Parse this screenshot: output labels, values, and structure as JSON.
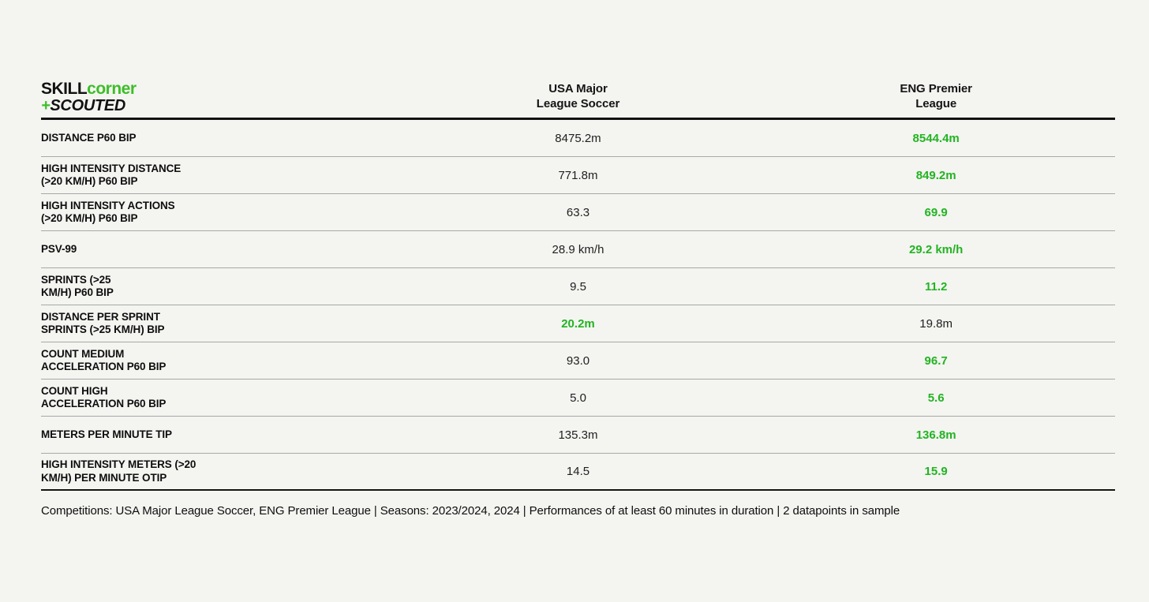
{
  "logo": {
    "line1_black": "SKILL",
    "line1_green": "corner",
    "line2_green": "+",
    "line2_black": "SCOUTED"
  },
  "header": {
    "columns": [
      {
        "key": "mls",
        "label": "USA Major\nLeague Soccer"
      },
      {
        "key": "epl",
        "label": "ENG Premier\nLeague"
      }
    ]
  },
  "colors": {
    "highlight_green": "#22b422",
    "logo_green": "#3dbe28",
    "background": "#f4f4f1",
    "separator_gray": "#a6aaa6"
  },
  "rows": [
    {
      "metric": "DISTANCE P60 BIP",
      "mls": "8475.2m",
      "epl": "8544.4m",
      "best": "epl"
    },
    {
      "metric": "HIGH INTENSITY DISTANCE\n(>20 KM/H) P60 BIP",
      "mls": "771.8m",
      "epl": "849.2m",
      "best": "epl"
    },
    {
      "metric": "HIGH INTENSITY ACTIONS\n(>20 KM/H) P60 BIP",
      "mls": "63.3",
      "epl": "69.9",
      "best": "epl"
    },
    {
      "metric": "PSV-99",
      "mls": "28.9 km/h",
      "epl": "29.2 km/h",
      "best": "epl"
    },
    {
      "metric": "SPRINTS (>25\nKM/H) P60 BIP",
      "mls": "9.5",
      "epl": "11.2",
      "best": "epl"
    },
    {
      "metric": "DISTANCE PER SPRINT\nSPRINTS (>25 KM/H) BIP",
      "mls": "20.2m",
      "epl": "19.8m",
      "best": "mls"
    },
    {
      "metric": "COUNT MEDIUM\nACCELERATION P60 BIP",
      "mls": "93.0",
      "epl": "96.7",
      "best": "epl"
    },
    {
      "metric": "COUNT HIGH\nACCELERATION P60 BIP",
      "mls": "5.0",
      "epl": "5.6",
      "best": "epl"
    },
    {
      "metric": "METERS PER MINUTE TIP",
      "mls": "135.3m",
      "epl": "136.8m",
      "best": "epl"
    },
    {
      "metric": "HIGH INTENSITY METERS (>20\nKM/H) PER MINUTE OTIP",
      "mls": "14.5",
      "epl": "15.9",
      "best": "epl"
    }
  ],
  "footer": {
    "text": "Competitions: USA Major League Soccer, ENG Premier League | Seasons: 2023/2024, 2024 | Performances of at least 60 minutes in duration | 2 datapoints in sample"
  }
}
